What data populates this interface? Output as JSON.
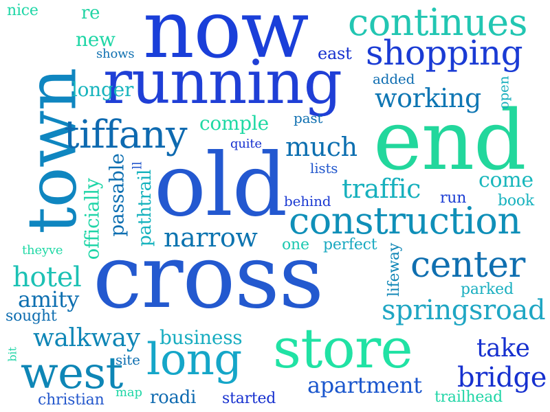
{
  "palette": {
    "blue": "#1a44d6",
    "royal": "#2358d0",
    "teal": "#0f8fb8",
    "ocean": "#0d6fb0",
    "mint": "#1fdca0",
    "sea": "#22c6b2"
  },
  "words": [
    "now",
    "running",
    "end",
    "old",
    "cross",
    "town",
    "store",
    "construction",
    "long",
    "continues",
    "shopping",
    "tiffany",
    "center",
    "west",
    "bridge",
    "springsroad",
    "much",
    "working",
    "traffic",
    "narrow",
    "hotel",
    "walkway",
    "take",
    "apartment",
    "amity",
    "come",
    "business",
    "comple",
    "officially",
    "passable",
    "pathtrail",
    "lifeway",
    "open",
    "new",
    "re",
    "longer",
    "nice",
    "east",
    "shows",
    "added",
    "past",
    "quite",
    "lists",
    "behind",
    "run",
    "book",
    "one",
    "perfect",
    "theyve",
    "sought",
    "parked",
    "bit",
    "site",
    "map",
    "christian",
    "roadi",
    "started",
    "trailhead",
    "ll"
  ]
}
